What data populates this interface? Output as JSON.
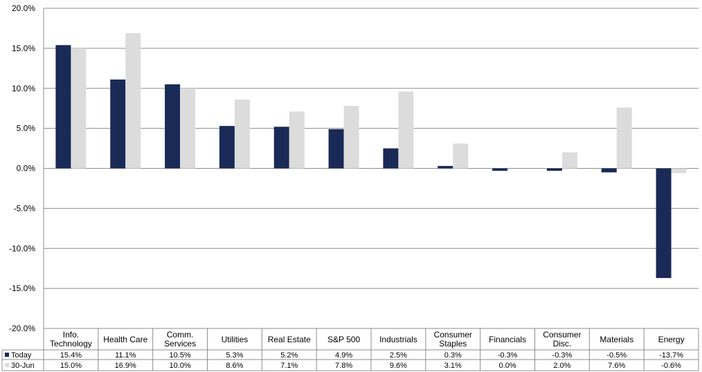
{
  "chart_data": {
    "type": "bar",
    "title": "",
    "xlabel": "",
    "ylabel": "",
    "ylim": [
      -20,
      20
    ],
    "yticks": [
      "20.0%",
      "15.0%",
      "10.0%",
      "5.0%",
      "0.0%",
      "-5.0%",
      "-10.0%",
      "-15.0%",
      "-20.0%"
    ],
    "ytick_values": [
      20,
      15,
      10,
      5,
      0,
      -5,
      -10,
      -15,
      -20
    ],
    "grid": true,
    "legend": "table-left",
    "categories": [
      [
        "Info.",
        "Technology"
      ],
      [
        "Health Care"
      ],
      [
        "Comm.",
        "Services"
      ],
      [
        "Utilities"
      ],
      [
        "Real Estate"
      ],
      [
        "S&P 500"
      ],
      [
        "Industrials"
      ],
      [
        "Consumer",
        "Staples"
      ],
      [
        "Financials"
      ],
      [
        "Consumer",
        "Disc."
      ],
      [
        "Materials"
      ],
      [
        "Energy"
      ]
    ],
    "series": [
      {
        "name": "Today",
        "color": "#1a2a56",
        "values": [
          15.4,
          11.1,
          10.5,
          5.3,
          5.2,
          4.9,
          2.5,
          0.3,
          -0.3,
          -0.3,
          -0.5,
          -13.7
        ],
        "labels": [
          "15.4%",
          "11.1%",
          "10.5%",
          "5.3%",
          "5.2%",
          "4.9%",
          "2.5%",
          "0.3%",
          "-0.3%",
          "-0.3%",
          "-0.5%",
          "-13.7%"
        ]
      },
      {
        "name": "30-Jun",
        "color": "#dcdcdc",
        "values": [
          15.0,
          16.9,
          10.0,
          8.6,
          7.1,
          7.8,
          9.6,
          3.1,
          0.0,
          2.0,
          7.6,
          -0.6
        ],
        "labels": [
          "15.0%",
          "16.9%",
          "10.0%",
          "8.6%",
          "7.1%",
          "7.8%",
          "9.6%",
          "3.1%",
          "0.0%",
          "2.0%",
          "7.6%",
          "-0.6%"
        ]
      }
    ]
  }
}
